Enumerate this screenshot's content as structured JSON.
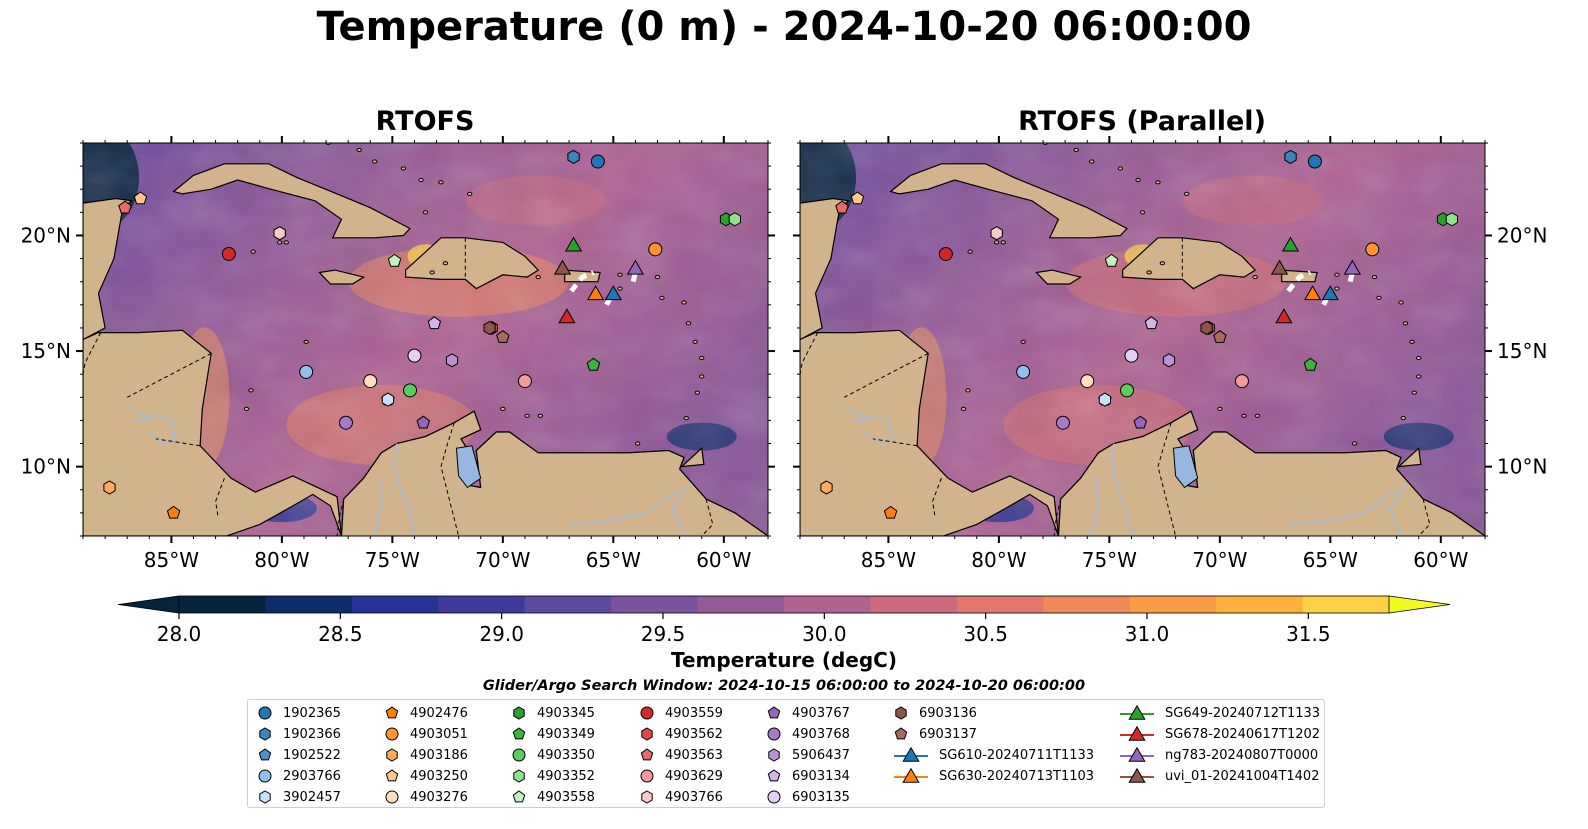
{
  "title": "Temperature (0 m) - 2024-10-20 06:00:00",
  "panels": [
    {
      "title": "RTOFS"
    },
    {
      "title": "RTOFS (Parallel)"
    }
  ],
  "map": {
    "extent_lon": [
      -89,
      -58
    ],
    "extent_lat": [
      7,
      24
    ],
    "lon_ticks": [
      -85,
      -80,
      -75,
      -70,
      -65,
      -60
    ],
    "lon_tick_labels": [
      "85°W",
      "80°W",
      "75°W",
      "70°W",
      "65°W",
      "60°W"
    ],
    "lat_ticks": [
      10,
      15,
      20
    ],
    "lat_tick_labels": [
      "10°N",
      "15°N",
      "20°N"
    ],
    "land_color": "#d2b48c",
    "lake_color": "#97b6e1"
  },
  "colorbar": {
    "label": "Temperature (degC)",
    "ticks": [
      28.0,
      28.5,
      29.0,
      29.5,
      30.0,
      30.5,
      31.0,
      31.5
    ],
    "tick_labels": [
      "28.0",
      "28.5",
      "29.0",
      "29.5",
      "30.0",
      "30.5",
      "31.0",
      "31.5"
    ],
    "colors": [
      "#03243c",
      "#0c2d6c",
      "#253494",
      "#3f3a9b",
      "#5d4a9e",
      "#7b529d",
      "#955a98",
      "#b06292",
      "#cc6a7e",
      "#e4766b",
      "#f1885a",
      "#f99c46",
      "#fdb13b",
      "#fcd145",
      "#f0f921"
    ],
    "extend": "both"
  },
  "legend": {
    "title": "Glider/Argo Search Window: 2024-10-15 06:00:00 to 2024-10-20 06:00:00",
    "columns": [
      [
        {
          "label": "1902365",
          "marker": "circle",
          "color": "#1f77b4"
        },
        {
          "label": "1902366",
          "marker": "hexagon",
          "color": "#3a85c0"
        },
        {
          "label": "1902522",
          "marker": "pentagon",
          "color": "#4d90cc"
        },
        {
          "label": "2903766",
          "marker": "circle",
          "color": "#8fc1ee"
        },
        {
          "label": "3902457",
          "marker": "hexagon",
          "color": "#c6e2fb"
        }
      ],
      [
        {
          "label": "4902476",
          "marker": "pentagon",
          "color": "#ff7f0e"
        },
        {
          "label": "4903051",
          "marker": "circle",
          "color": "#ff9430"
        },
        {
          "label": "4903186",
          "marker": "hexagon",
          "color": "#ffab5e"
        },
        {
          "label": "4903250",
          "marker": "pentagon",
          "color": "#ffc690"
        },
        {
          "label": "4903276",
          "marker": "circle",
          "color": "#ffdfbf"
        }
      ],
      [
        {
          "label": "4903345",
          "marker": "hexagon",
          "color": "#2ca02c"
        },
        {
          "label": "4903349",
          "marker": "pentagon",
          "color": "#3ab63a"
        },
        {
          "label": "4903350",
          "marker": "circle",
          "color": "#5ccc5c"
        },
        {
          "label": "4903352",
          "marker": "hexagon",
          "color": "#8de28d"
        },
        {
          "label": "4903558",
          "marker": "pentagon",
          "color": "#c3f3c3"
        }
      ],
      [
        {
          "label": "4903559",
          "marker": "circle",
          "color": "#d62728"
        },
        {
          "label": "4903562",
          "marker": "hexagon",
          "color": "#e04848"
        },
        {
          "label": "4903563",
          "marker": "pentagon",
          "color": "#ea6a6a"
        },
        {
          "label": "4903629",
          "marker": "circle",
          "color": "#f39a9a"
        },
        {
          "label": "4903766",
          "marker": "hexagon",
          "color": "#fac8c8"
        }
      ],
      [
        {
          "label": "4903767",
          "marker": "pentagon",
          "color": "#9467bd"
        },
        {
          "label": "4903768",
          "marker": "circle",
          "color": "#a57ac8"
        },
        {
          "label": "5906437",
          "marker": "hexagon",
          "color": "#b894d6"
        },
        {
          "label": "6903134",
          "marker": "pentagon",
          "color": "#d1b6ea"
        },
        {
          "label": "6903135",
          "marker": "circle",
          "color": "#e3d0f6"
        }
      ],
      [
        {
          "label": "6903136",
          "marker": "hexagon",
          "color": "#8c564b"
        },
        {
          "label": "6903137",
          "marker": "pentagon",
          "color": "#a66b5e"
        },
        {
          "label": "SG610-20240711T1133",
          "marker": "triangle",
          "color": "#1f77b4"
        },
        {
          "label": "SG630-20240713T1103",
          "marker": "triangle",
          "color": "#ff7f0e"
        }
      ],
      [
        {
          "label": "SG649-20240712T1133",
          "marker": "triangle",
          "color": "#2ca02c"
        },
        {
          "label": "SG678-20240617T1202",
          "marker": "triangle",
          "color": "#d62728"
        },
        {
          "label": "ng783-20240807T0000",
          "marker": "triangle",
          "color": "#9467bd"
        },
        {
          "label": "uvi_01-20241004T1402",
          "marker": "triangle",
          "color": "#8c564b"
        }
      ]
    ]
  },
  "platform_positions": [
    {
      "id": "1902365",
      "lon": -65.7,
      "lat": 23.2
    },
    {
      "id": "1902366",
      "lon": -66.8,
      "lat": 23.4
    },
    {
      "id": "1902522",
      "lon": -75.2,
      "lat": 12.9
    },
    {
      "id": "2903766",
      "lon": -78.9,
      "lat": 14.1
    },
    {
      "id": "3902457",
      "lon": -75.2,
      "lat": 12.9
    },
    {
      "id": "4902476",
      "lon": -84.9,
      "lat": 8.0
    },
    {
      "id": "4903051",
      "lon": -63.1,
      "lat": 19.4
    },
    {
      "id": "4903186",
      "lon": -87.8,
      "lat": 9.1
    },
    {
      "id": "4903250",
      "lon": -86.4,
      "lat": 21.6
    },
    {
      "id": "4903276",
      "lon": -76.0,
      "lat": 13.7
    },
    {
      "id": "4903345",
      "lon": -59.9,
      "lat": 20.7
    },
    {
      "id": "4903349",
      "lon": -65.9,
      "lat": 14.4
    },
    {
      "id": "4903350",
      "lon": -74.2,
      "lat": 13.3
    },
    {
      "id": "4903352",
      "lon": -59.5,
      "lat": 20.7
    },
    {
      "id": "4903558",
      "lon": -74.9,
      "lat": 18.9
    },
    {
      "id": "4903559",
      "lon": -82.4,
      "lat": 19.2
    },
    {
      "id": "4903562",
      "lon": -70.5,
      "lat": 16.0
    },
    {
      "id": "4903563",
      "lon": -87.1,
      "lat": 21.2
    },
    {
      "id": "4903629",
      "lon": -69.0,
      "lat": 13.7
    },
    {
      "id": "4903766",
      "lon": -80.1,
      "lat": 20.1
    },
    {
      "id": "4903767",
      "lon": -73.6,
      "lat": 11.9
    },
    {
      "id": "4903768",
      "lon": -77.1,
      "lat": 11.9
    },
    {
      "id": "5906437",
      "lon": -72.3,
      "lat": 14.6
    },
    {
      "id": "6903134",
      "lon": -73.1,
      "lat": 16.2
    },
    {
      "id": "6903135",
      "lon": -74.0,
      "lat": 14.8
    },
    {
      "id": "6903136",
      "lon": -70.6,
      "lat": 16.0
    },
    {
      "id": "6903137",
      "lon": -70.0,
      "lat": 15.6
    },
    {
      "id": "SG610-20240711T1133",
      "lon": -65.0,
      "lat": 17.5
    },
    {
      "id": "SG630-20240713T1103",
      "lon": -65.8,
      "lat": 17.5
    },
    {
      "id": "SG649-20240712T1133",
      "lon": -66.8,
      "lat": 19.6
    },
    {
      "id": "SG678-20240617T1202",
      "lon": -67.1,
      "lat": 16.5
    },
    {
      "id": "ng783-20240807T0000",
      "lon": -64.0,
      "lat": 18.6
    },
    {
      "id": "uvi_01-20241004T1402",
      "lon": -67.3,
      "lat": 18.6
    }
  ]
}
